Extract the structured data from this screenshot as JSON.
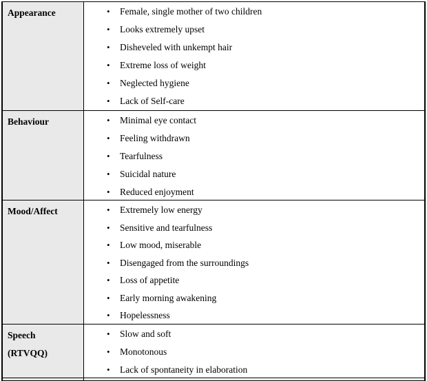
{
  "table": {
    "bullet_glyph": "•",
    "colors": {
      "header_cell_bg": "#e9e9e9",
      "body_cell_bg": "#ffffff",
      "border": "#000000",
      "text": "#000000"
    },
    "rows": [
      {
        "header_lines": [
          "Appearance"
        ],
        "items": [
          "Female, single mother of two children",
          "Looks extremely upset",
          "Disheveled with unkempt hair",
          "Extreme loss of weight",
          "Neglected hygiene",
          "Lack of Self-care"
        ]
      },
      {
        "header_lines": [
          "Behaviour"
        ],
        "items": [
          "Minimal eye contact",
          "Feeling withdrawn",
          "Tearfulness",
          "Suicidal nature",
          "Reduced enjoyment"
        ]
      },
      {
        "header_lines": [
          "Mood/Affect"
        ],
        "items": [
          "Extremely low energy",
          "Sensitive and tearfulness",
          "Low mood, miserable",
          "Disengaged from the surroundings",
          "Loss of appetite",
          "Early morning awakening",
          "Hopelessness"
        ]
      },
      {
        "header_lines": [
          "Speech",
          "(RTVQQ)"
        ],
        "items": [
          "Slow and soft",
          "Monotonous",
          "Lack of spontaneity in elaboration"
        ]
      },
      {
        "header_lines": [],
        "items": []
      }
    ]
  }
}
